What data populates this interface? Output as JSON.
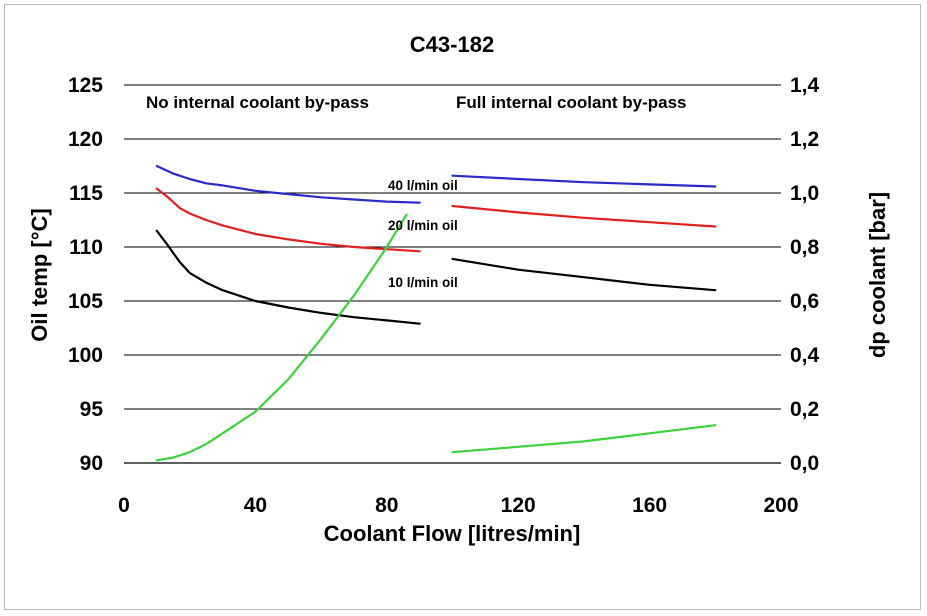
{
  "chart_data": {
    "type": "line",
    "title": "C43-182",
    "xlabel": "Coolant Flow  [litres/min]",
    "ylabel": "Oil temp [°C]",
    "y2label": "dp coolant [bar]",
    "xlim": [
      0,
      200
    ],
    "ylim": [
      90,
      125
    ],
    "y2lim": [
      0.0,
      1.4
    ],
    "x_ticks": [
      "0",
      "40",
      "80",
      "120",
      "160",
      "200"
    ],
    "y_ticks": [
      "90",
      "95",
      "100",
      "105",
      "110",
      "115",
      "120",
      "125"
    ],
    "y2_ticks": [
      "0,0",
      "0,2",
      "0,4",
      "0,6",
      "0,8",
      "1,0",
      "1,2",
      "1,4"
    ],
    "grid": "horizontal",
    "regions": [
      "No internal coolant by-pass",
      "Full internal coolant by-pass"
    ],
    "annotations": [
      "40 l/min oil",
      "20 l/min oil",
      "10 l/min oil"
    ],
    "colors": {
      "s40": "#2a2ac8",
      "s20": "#e02020",
      "s10": "#000000",
      "dp": "#3cd23c",
      "grid": "#000000",
      "frame": "#b9b9b9"
    },
    "series": [
      {
        "axis": "left",
        "color_key": "s40",
        "x": [
          10,
          15,
          20,
          25,
          30,
          40,
          50,
          60,
          70,
          80,
          90
        ],
        "values": [
          117.5,
          116.8,
          116.3,
          115.9,
          115.7,
          115.2,
          114.9,
          114.6,
          114.4,
          114.2,
          114.1
        ]
      },
      {
        "axis": "left",
        "color_key": "s20",
        "x": [
          10,
          13,
          17,
          20,
          25,
          30,
          40,
          50,
          60,
          70,
          80,
          90
        ],
        "values": [
          115.4,
          114.7,
          113.6,
          113.1,
          112.5,
          112.0,
          111.2,
          110.7,
          110.3,
          110.0,
          109.8,
          109.6
        ]
      },
      {
        "axis": "left",
        "color_key": "s10",
        "x": [
          10,
          13,
          17,
          20,
          25,
          30,
          40,
          50,
          60,
          70,
          80,
          90
        ],
        "values": [
          111.5,
          110.3,
          108.6,
          107.6,
          106.7,
          106.0,
          105.0,
          104.4,
          103.9,
          103.5,
          103.2,
          102.9
        ]
      },
      {
        "axis": "right",
        "color_key": "dp",
        "x": [
          10,
          15,
          20,
          25,
          30,
          40,
          50,
          60,
          70,
          80,
          86
        ],
        "values": [
          0.01,
          0.02,
          0.04,
          0.07,
          0.11,
          0.19,
          0.31,
          0.46,
          0.62,
          0.8,
          0.92
        ]
      },
      {
        "axis": "left",
        "color_key": "s40",
        "x": [
          100,
          120,
          140,
          160,
          180
        ],
        "values": [
          116.6,
          116.3,
          116.0,
          115.8,
          115.6
        ]
      },
      {
        "axis": "left",
        "color_key": "s20",
        "x": [
          100,
          120,
          140,
          160,
          180
        ],
        "values": [
          113.8,
          113.2,
          112.7,
          112.3,
          111.9
        ]
      },
      {
        "axis": "left",
        "color_key": "s10",
        "x": [
          100,
          120,
          140,
          160,
          180
        ],
        "values": [
          108.9,
          107.9,
          107.2,
          106.5,
          106.0
        ]
      },
      {
        "axis": "right",
        "color_key": "dp",
        "x": [
          100,
          120,
          140,
          160,
          180
        ],
        "values": [
          0.04,
          0.06,
          0.08,
          0.11,
          0.14
        ]
      }
    ]
  }
}
